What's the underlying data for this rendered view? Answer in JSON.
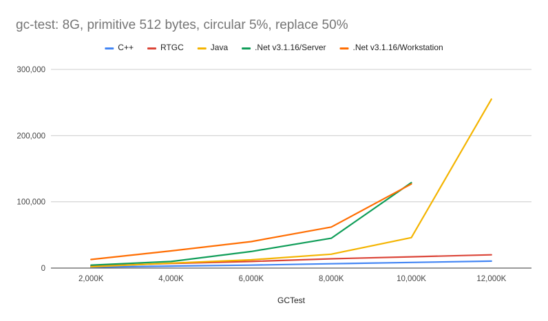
{
  "chart_data": {
    "type": "line",
    "title": "gc-test: 8G, primitive 512 bytes, circular 5%, replace 50%",
    "xlabel": "GCTest",
    "ylabel": "",
    "categories": [
      "2,000K",
      "4,000K",
      "6,000K",
      "8,000K",
      "10,000K",
      "12,000K"
    ],
    "ylim": [
      0,
      300000
    ],
    "yticks": [
      0,
      100000,
      200000,
      300000
    ],
    "ytick_labels": [
      "0",
      "100,000",
      "200,000",
      "300,000"
    ],
    "grid": true,
    "legend_position": "top",
    "series": [
      {
        "name": "C++",
        "color": "#4285f4",
        "values": [
          1500,
          3000,
          4500,
          6500,
          8500,
          10500
        ]
      },
      {
        "name": "RTGC",
        "color": "#db4437",
        "values": [
          3000,
          7000,
          10000,
          14000,
          17000,
          20000
        ]
      },
      {
        "name": "Java",
        "color": "#f4b400",
        "values": [
          2000,
          7500,
          12500,
          21000,
          46000,
          255000
        ]
      },
      {
        "name": ".Net v3.1.16/Server",
        "color": "#0f9d58",
        "values": [
          4500,
          10000,
          25000,
          45000,
          129000,
          null
        ]
      },
      {
        "name": ".Net v3.1.16/Workstation",
        "color": "#ff6d01",
        "values": [
          13000,
          26000,
          40000,
          62000,
          127000,
          null
        ]
      }
    ]
  }
}
